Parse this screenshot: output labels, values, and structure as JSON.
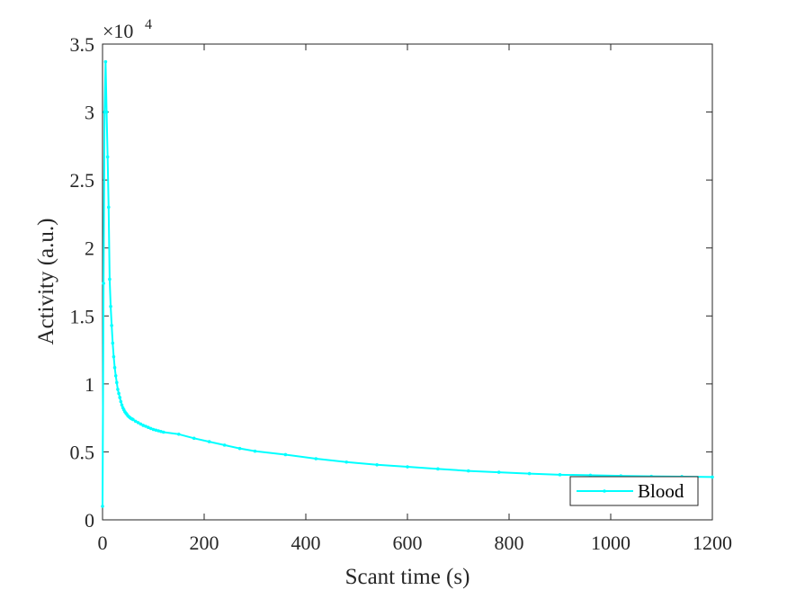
{
  "chart_data": {
    "type": "line",
    "xlabel": "Scant time (s)",
    "ylabel": "Activity (a.u.)",
    "xlim": [
      0,
      1200
    ],
    "ylim": [
      0,
      35000
    ],
    "xticks": [
      0,
      200,
      400,
      600,
      800,
      1000,
      1200
    ],
    "xtick_labels": [
      "0",
      "200",
      "400",
      "600",
      "800",
      "1000",
      "1200"
    ],
    "yticks": [
      0,
      5000,
      10000,
      15000,
      20000,
      25000,
      30000,
      35000
    ],
    "ytick_labels": [
      "0",
      "0.5",
      "1",
      "1.5",
      "2",
      "2.5",
      "3",
      "3.5"
    ],
    "y_exponent_label": "×10",
    "y_exponent_power": "4",
    "grid": false,
    "legend": "bottom-right",
    "colors": {
      "series": "#00ffff",
      "axes": "#262626"
    },
    "series": [
      {
        "name": "Blood",
        "x": [
          0,
          2,
          4,
          6,
          8,
          10,
          12,
          14,
          16,
          18,
          20,
          22,
          24,
          26,
          28,
          30,
          32,
          34,
          36,
          38,
          40,
          42,
          44,
          46,
          48,
          50,
          52,
          54,
          56,
          58,
          60,
          65,
          70,
          75,
          80,
          85,
          90,
          95,
          100,
          105,
          110,
          115,
          120,
          150,
          180,
          210,
          240,
          270,
          300,
          360,
          420,
          480,
          540,
          600,
          660,
          720,
          780,
          840,
          900,
          960,
          1020,
          1080,
          1140,
          1200
        ],
        "y": [
          1000,
          17400,
          30000,
          33700,
          30000,
          26700,
          23000,
          17700,
          15700,
          14300,
          13000,
          12000,
          11200,
          10600,
          10100,
          9600,
          9300,
          9000,
          8700,
          8450,
          8250,
          8100,
          7950,
          7850,
          7750,
          7650,
          7580,
          7520,
          7460,
          7420,
          7380,
          7250,
          7150,
          7050,
          6950,
          6880,
          6800,
          6720,
          6650,
          6600,
          6550,
          6500,
          6450,
          6300,
          6000,
          5750,
          5500,
          5250,
          5050,
          4800,
          4500,
          4250,
          4050,
          3900,
          3750,
          3600,
          3500,
          3400,
          3320,
          3280,
          3230,
          3200,
          3180,
          3150
        ]
      }
    ]
  }
}
